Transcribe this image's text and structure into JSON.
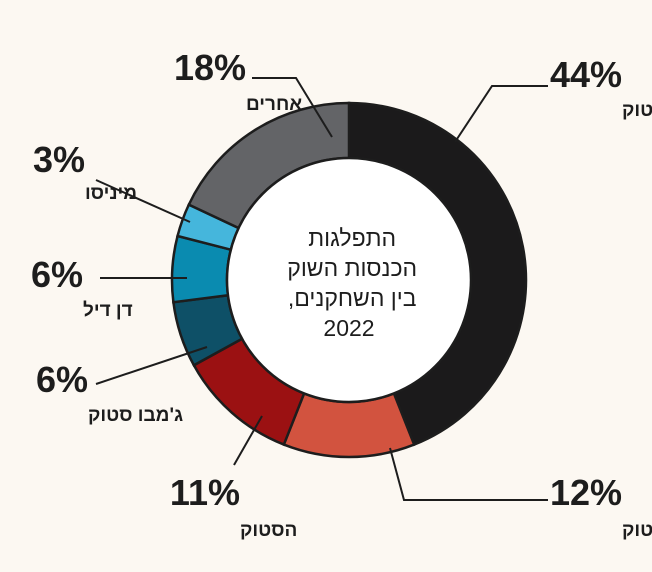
{
  "chart_data": {
    "type": "pie",
    "title": "התפלגות הכנסות השוק בין השחקנים, 2022",
    "title_lines": [
      "התפלגות",
      "הכנסות השוק",
      "בין השחקנים,",
      "2022"
    ],
    "slices": [
      {
        "label": "מקס סטוק",
        "value": 44,
        "value_label": "44%",
        "color": "#1b1a1b"
      },
      {
        "label": "זול סטוק",
        "value": 12,
        "value_label": "12%",
        "color": "#d2533f"
      },
      {
        "label": "הסטוק",
        "value": 11,
        "value_label": "11%",
        "color": "#9b1112"
      },
      {
        "label": "ג'מבו סטוק",
        "value": 6,
        "value_label": "6%",
        "color": "#0e5067"
      },
      {
        "label": "דן דיל",
        "value": 6,
        "value_label": "6%",
        "color": "#0a8bb0"
      },
      {
        "label": "מיניסו",
        "value": 3,
        "value_label": "3%",
        "color": "#45b6dc"
      },
      {
        "label": "אחרים",
        "value": 18,
        "value_label": "18%",
        "color": "#636467"
      }
    ]
  }
}
